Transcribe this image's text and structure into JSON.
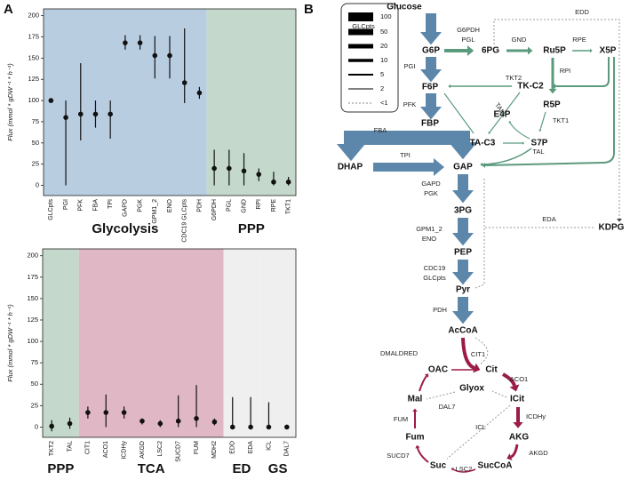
{
  "panel_labels": [
    "A",
    "B"
  ],
  "chart_data": [
    {
      "type": "errorbar",
      "ylabel": "Flux (mmol * gDW⁻¹ * h⁻¹)",
      "ylim": [
        -12,
        208
      ],
      "yticks": [
        0,
        25,
        50,
        75,
        100,
        125,
        150,
        175,
        200
      ],
      "groups": [
        {
          "label": "Glycolysis",
          "color": "#b9cde1",
          "categories": [
            "GLCpts",
            "PGI",
            "PFK",
            "FBA",
            "TPI",
            "GAPD",
            "PGK",
            "GPM1_2",
            "ENO",
            "CDC19 GLCpts",
            "PDH"
          ],
          "values": [
            100,
            80,
            84,
            84,
            84,
            168,
            168,
            153,
            153,
            121,
            109
          ],
          "lower": [
            100,
            0,
            53,
            68,
            55,
            160,
            160,
            126,
            126,
            97,
            102
          ],
          "upper": [
            100,
            100,
            144,
            100,
            100,
            177,
            177,
            176,
            176,
            185,
            116
          ]
        },
        {
          "label": "PPP",
          "color": "#c4d9cb",
          "categories": [
            "G6PDH",
            "PGL",
            "GND",
            "RPI",
            "RPE",
            "TKT1"
          ],
          "values": [
            20,
            20,
            17,
            13,
            4,
            4
          ],
          "lower": [
            0,
            0,
            0,
            5,
            0,
            0
          ],
          "upper": [
            42,
            42,
            38,
            20,
            16,
            10
          ]
        }
      ]
    },
    {
      "type": "errorbar",
      "ylabel": "Flux (mmol * gDW⁻¹ * h⁻¹)",
      "ylim": [
        -12,
        208
      ],
      "yticks": [
        0,
        25,
        50,
        75,
        100,
        125,
        150,
        175,
        200
      ],
      "groups": [
        {
          "label": "PPP",
          "color": "#c4d9cb",
          "categories": [
            "TKT2",
            "TAL"
          ],
          "values": [
            1,
            4
          ],
          "lower": [
            -5,
            -2
          ],
          "upper": [
            8,
            11
          ]
        },
        {
          "label": "TCA",
          "color": "#e0b8c5",
          "categories": [
            "CIT1",
            "ACO1",
            "ICDHy",
            "AKGD",
            "LSC2",
            "SUCD7",
            "FUM",
            "MDH2"
          ],
          "values": [
            17,
            17,
            17,
            7,
            4,
            7,
            10,
            6
          ],
          "lower": [
            10,
            0,
            10,
            3,
            0,
            0,
            0,
            2
          ],
          "upper": [
            24,
            38,
            24,
            10,
            8,
            37,
            49,
            10
          ]
        },
        {
          "label": "ED",
          "color": "#efefef",
          "categories": [
            "EDD",
            "EDA"
          ],
          "values": [
            0,
            0
          ],
          "lower": [
            0,
            0
          ],
          "upper": [
            35,
            35
          ]
        },
        {
          "label": "GS",
          "color": "#efefef",
          "categories": [
            "ICL",
            "DAL7"
          ],
          "values": [
            0,
            0
          ],
          "lower": [
            0,
            0
          ],
          "upper": [
            29,
            2
          ]
        }
      ]
    }
  ],
  "diagram": {
    "legend": [
      100,
      50,
      20,
      10,
      5,
      2,
      "<1"
    ],
    "metabolites": [
      "Glucose",
      "G6P",
      "6PG",
      "Ru5P",
      "X5P",
      "F6P",
      "TK-C2",
      "R5P",
      "E4P",
      "FBP",
      "TA-C3",
      "S7P",
      "DHAP",
      "GAP",
      "3PG",
      "KDPG",
      "PEP",
      "Pyr",
      "AcCoA",
      "OAC",
      "Cit",
      "Glyox",
      "Mal",
      "ICit",
      "Fum",
      "AKG",
      "Suc",
      "SucCoA"
    ],
    "enzymes": [
      "GLCpts",
      "G6PDH",
      "PGL",
      "EDD",
      "GND",
      "RPE",
      "PGI",
      "TKT2",
      "RPI",
      "PFK",
      "TAL",
      "TKT1",
      "TAL",
      "FBA",
      "TPI",
      "GAPD",
      "PGK",
      "EDA",
      "GPM1_2",
      "ENO",
      "CDC19",
      "GLCpts",
      "PDH",
      "CIT1",
      "DMALDRED",
      "ACO1",
      "DAL7",
      "ICL",
      "ICDHy",
      "FUM",
      "AKGD",
      "SUCD7",
      "LSC2"
    ]
  }
}
